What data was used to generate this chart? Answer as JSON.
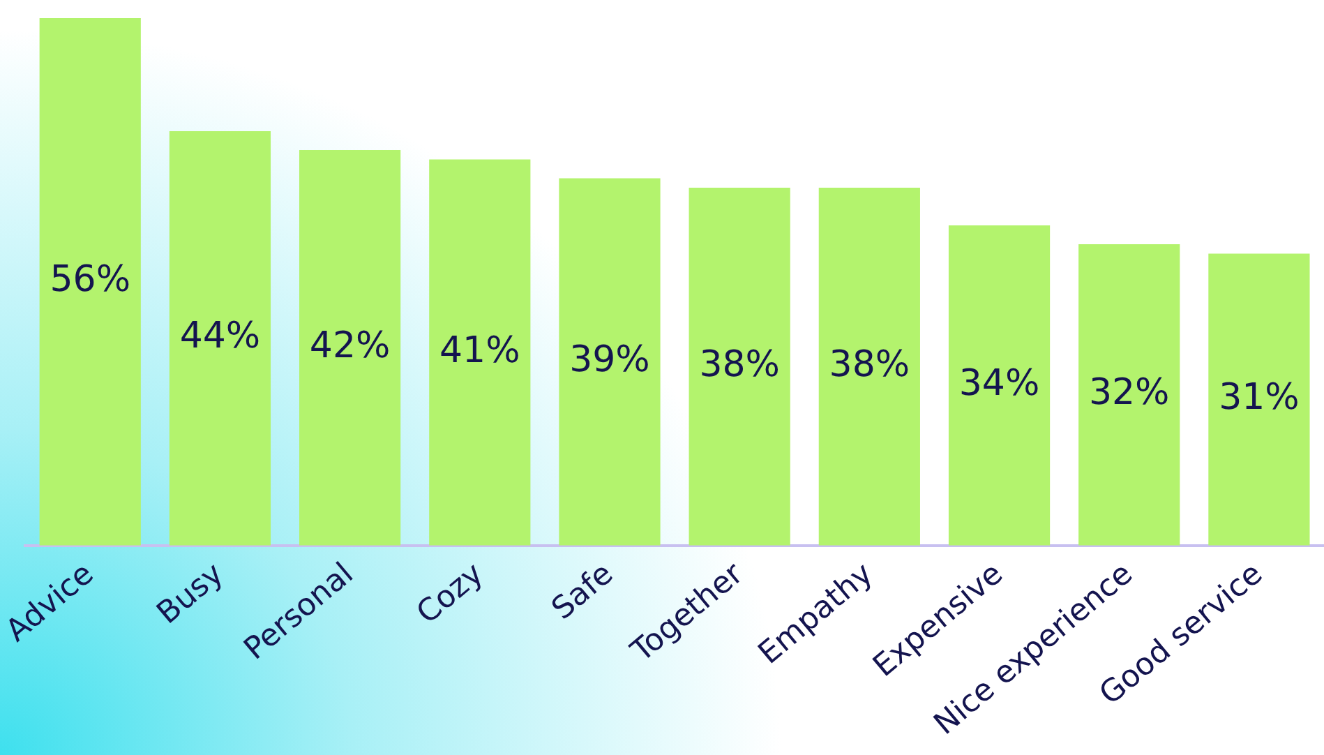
{
  "chart_data": {
    "type": "bar",
    "categories": [
      "Advice",
      "Busy",
      "Personal",
      "Cozy",
      "Safe",
      "Together",
      "Empathy",
      "Expensive",
      "Nice experience",
      "Good service"
    ],
    "values": [
      56,
      44,
      42,
      41,
      39,
      38,
      38,
      34,
      32,
      31
    ],
    "value_labels": [
      "56%",
      "44%",
      "42%",
      "41%",
      "39%",
      "38%",
      "38%",
      "34%",
      "32%",
      "31%"
    ],
    "color": "#b3f36d",
    "ylim": [
      0,
      56
    ],
    "grid": false,
    "legend": false,
    "tick_labels": "x"
  }
}
